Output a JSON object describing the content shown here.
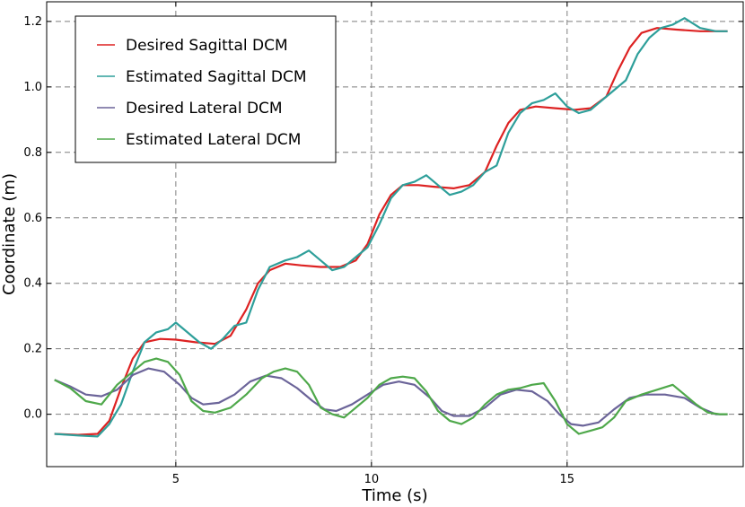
{
  "chart_data": {
    "type": "line",
    "xlabel": "Time (s)",
    "ylabel": "Coordinate (m)",
    "xlim": [
      1.7,
      19.5
    ],
    "ylim": [
      -0.16,
      1.26
    ],
    "xticks": [
      5,
      10,
      15
    ],
    "xtick_labels": [
      "5",
      "10",
      "15"
    ],
    "yticks": [
      0.0,
      0.2,
      0.4,
      0.6,
      0.8,
      1.0,
      1.2
    ],
    "ytick_labels": [
      "0.0",
      "0.2",
      "0.4",
      "0.6",
      "0.8",
      "1.0",
      "1.2"
    ],
    "grid": true,
    "legend_position": "top-left",
    "series": [
      {
        "name": "Desired Sagittal DCM",
        "color": "#dd2222",
        "x": [
          1.9,
          2.5,
          3.0,
          3.3,
          3.6,
          3.9,
          4.2,
          4.6,
          5.0,
          5.5,
          6.0,
          6.4,
          6.8,
          7.1,
          7.4,
          7.8,
          8.2,
          8.7,
          9.2,
          9.6,
          9.9,
          10.2,
          10.5,
          10.8,
          11.2,
          11.6,
          12.1,
          12.5,
          12.9,
          13.2,
          13.5,
          13.8,
          14.2,
          14.7,
          15.2,
          15.6,
          16.0,
          16.3,
          16.6,
          16.9,
          17.3,
          17.8,
          18.4,
          19.1
        ],
        "y": [
          -0.06,
          -0.063,
          -0.06,
          -0.02,
          0.08,
          0.17,
          0.22,
          0.23,
          0.228,
          0.22,
          0.215,
          0.24,
          0.32,
          0.4,
          0.44,
          0.46,
          0.455,
          0.45,
          0.45,
          0.47,
          0.52,
          0.61,
          0.67,
          0.7,
          0.7,
          0.695,
          0.69,
          0.7,
          0.74,
          0.82,
          0.89,
          0.93,
          0.94,
          0.935,
          0.93,
          0.935,
          0.97,
          1.05,
          1.12,
          1.165,
          1.18,
          1.175,
          1.17,
          1.17
        ]
      },
      {
        "name": "Estimated Sagittal DCM",
        "color": "#2e9f9a",
        "x": [
          1.9,
          2.5,
          3.0,
          3.3,
          3.6,
          3.9,
          4.2,
          4.5,
          4.8,
          5.0,
          5.3,
          5.6,
          5.9,
          6.2,
          6.5,
          6.8,
          7.1,
          7.4,
          7.8,
          8.1,
          8.4,
          8.7,
          9.0,
          9.3,
          9.6,
          9.9,
          10.2,
          10.5,
          10.8,
          11.1,
          11.4,
          11.7,
          12.0,
          12.3,
          12.6,
          12.9,
          13.2,
          13.5,
          13.8,
          14.1,
          14.4,
          14.7,
          15.0,
          15.3,
          15.6,
          15.9,
          16.2,
          16.5,
          16.8,
          17.1,
          17.4,
          17.7,
          18.0,
          18.4,
          18.8,
          19.1
        ],
        "y": [
          -0.06,
          -0.065,
          -0.068,
          -0.03,
          0.03,
          0.13,
          0.22,
          0.25,
          0.26,
          0.28,
          0.25,
          0.22,
          0.2,
          0.23,
          0.27,
          0.28,
          0.38,
          0.45,
          0.47,
          0.48,
          0.5,
          0.47,
          0.44,
          0.45,
          0.48,
          0.51,
          0.58,
          0.66,
          0.7,
          0.71,
          0.73,
          0.7,
          0.67,
          0.68,
          0.7,
          0.74,
          0.76,
          0.86,
          0.92,
          0.95,
          0.96,
          0.98,
          0.94,
          0.92,
          0.93,
          0.96,
          0.99,
          1.02,
          1.1,
          1.15,
          1.18,
          1.19,
          1.21,
          1.18,
          1.17,
          1.17
        ]
      },
      {
        "name": "Desired Lateral DCM",
        "color": "#6b6499",
        "x": [
          1.9,
          2.3,
          2.7,
          3.1,
          3.5,
          3.9,
          4.3,
          4.7,
          5.1,
          5.4,
          5.7,
          6.1,
          6.5,
          6.9,
          7.3,
          7.7,
          8.1,
          8.5,
          8.8,
          9.1,
          9.5,
          9.9,
          10.3,
          10.7,
          11.1,
          11.5,
          11.8,
          12.1,
          12.5,
          12.9,
          13.3,
          13.7,
          14.1,
          14.5,
          14.8,
          15.1,
          15.4,
          15.8,
          16.2,
          16.6,
          17.0,
          17.5,
          18.0,
          18.4,
          18.8,
          19.1
        ],
        "y": [
          0.105,
          0.085,
          0.06,
          0.055,
          0.075,
          0.12,
          0.14,
          0.13,
          0.09,
          0.05,
          0.03,
          0.035,
          0.06,
          0.1,
          0.118,
          0.11,
          0.08,
          0.04,
          0.015,
          0.01,
          0.03,
          0.06,
          0.09,
          0.1,
          0.09,
          0.05,
          0.01,
          -0.005,
          -0.005,
          0.02,
          0.06,
          0.075,
          0.07,
          0.04,
          0.0,
          -0.03,
          -0.035,
          -0.025,
          0.015,
          0.05,
          0.06,
          0.06,
          0.05,
          0.02,
          0.0,
          0.0
        ]
      },
      {
        "name": "Estimated Lateral DCM",
        "color": "#4ea84a",
        "x": [
          1.9,
          2.3,
          2.7,
          3.1,
          3.5,
          3.9,
          4.2,
          4.5,
          4.8,
          5.1,
          5.4,
          5.7,
          6.0,
          6.4,
          6.8,
          7.2,
          7.5,
          7.8,
          8.1,
          8.4,
          8.7,
          9.0,
          9.3,
          9.6,
          9.9,
          10.2,
          10.5,
          10.8,
          11.1,
          11.4,
          11.7,
          12.0,
          12.3,
          12.6,
          12.9,
          13.2,
          13.5,
          13.8,
          14.1,
          14.4,
          14.7,
          15.0,
          15.3,
          15.6,
          15.9,
          16.2,
          16.5,
          16.9,
          17.3,
          17.7,
          18.0,
          18.3,
          18.6,
          18.9,
          19.1
        ],
        "y": [
          0.105,
          0.08,
          0.04,
          0.03,
          0.09,
          0.13,
          0.16,
          0.17,
          0.16,
          0.12,
          0.04,
          0.01,
          0.005,
          0.02,
          0.06,
          0.11,
          0.13,
          0.14,
          0.13,
          0.09,
          0.02,
          0.0,
          -0.01,
          0.02,
          0.05,
          0.09,
          0.11,
          0.115,
          0.11,
          0.07,
          0.01,
          -0.02,
          -0.03,
          -0.01,
          0.03,
          0.06,
          0.075,
          0.08,
          0.09,
          0.095,
          0.04,
          -0.03,
          -0.06,
          -0.05,
          -0.04,
          -0.01,
          0.04,
          0.06,
          0.075,
          0.09,
          0.06,
          0.03,
          0.005,
          0.0,
          0.0
        ]
      }
    ]
  }
}
